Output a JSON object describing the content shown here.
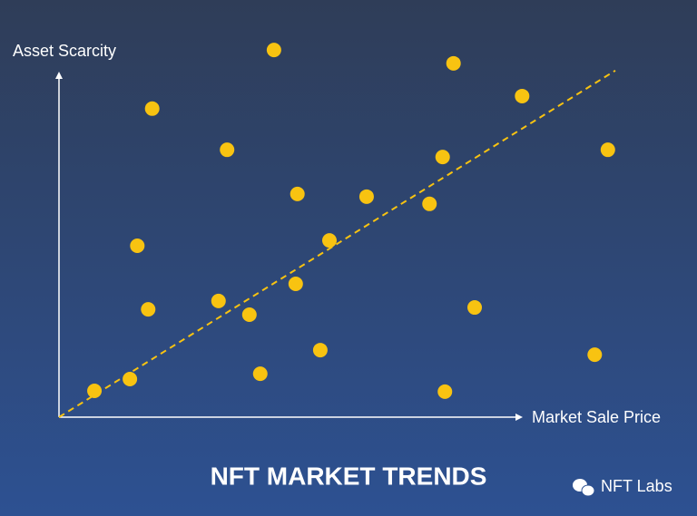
{
  "chart_data": {
    "type": "scatter",
    "title": "NFT MARKET TRENDS",
    "x_label": "Market Sale Price",
    "y_label": "Asset Scarcity",
    "xlim": [
      0,
      100
    ],
    "ylim": [
      0,
      100
    ],
    "color": "#f8c311",
    "x": [
      37.6,
      69.0,
      16.3,
      81.0,
      29.4,
      67.1,
      96.0,
      41.7,
      53.8,
      64.8,
      13.7,
      47.3,
      41.4,
      27.9,
      15.6,
      33.3,
      72.7,
      45.7,
      93.7,
      35.2,
      6.2,
      12.4,
      67.5
    ],
    "y": [
      96.4,
      92.9,
      81.0,
      84.3,
      70.2,
      68.3,
      70.2,
      58.6,
      57.9,
      56.0,
      45.0,
      46.4,
      35.0,
      30.5,
      28.3,
      26.9,
      28.8,
      17.6,
      16.4,
      11.4,
      6.9,
      10.0,
      6.7
    ],
    "trend_line": {
      "x": [
        0,
        97.3
      ],
      "y": [
        0,
        91.0
      ],
      "color": "#f8c311"
    }
  },
  "watermark": "NFT Labs"
}
